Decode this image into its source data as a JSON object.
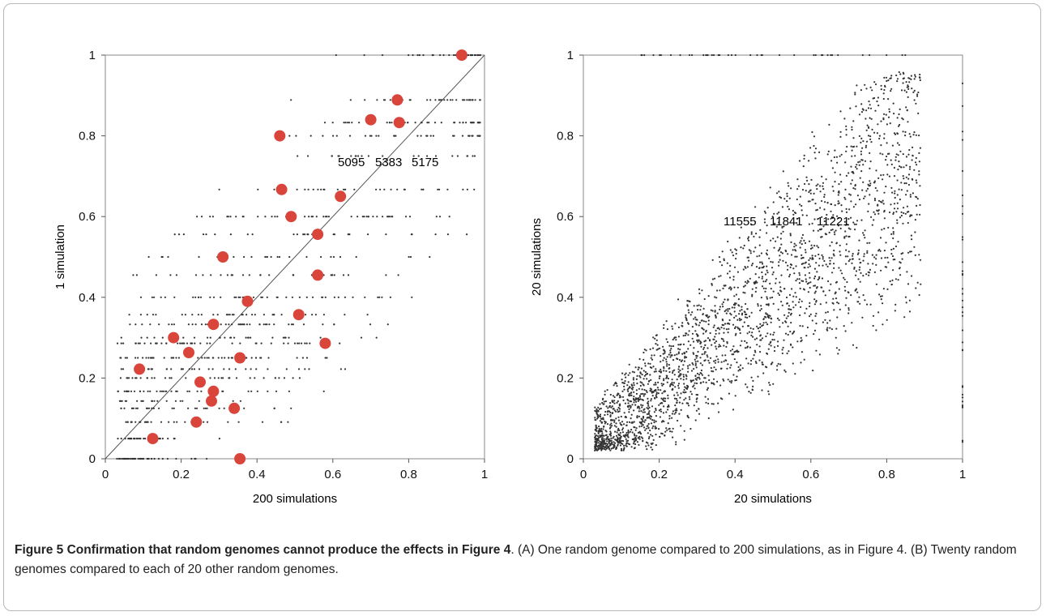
{
  "chart_data": [
    {
      "type": "scatter",
      "xlabel": "200 simulations",
      "ylabel": "1 simulation",
      "xlim": [
        0,
        1
      ],
      "ylim": [
        0,
        1
      ],
      "x_ticks": [
        "0",
        "0.2",
        "0.4",
        "0.6",
        "0.8",
        "1"
      ],
      "y_ticks": [
        "0",
        "0.2",
        "0.4",
        "0.6",
        "0.8",
        "1"
      ],
      "diagonal_line": true,
      "annotations": [
        "5095",
        "5383",
        "5175"
      ],
      "background_levels": [
        0,
        0.05,
        0.091,
        0.125,
        0.143,
        0.167,
        0.2,
        0.222,
        0.25,
        0.286,
        0.3,
        0.333,
        0.357,
        0.4,
        0.455,
        0.5,
        0.556,
        0.6,
        0.667,
        0.75,
        0.8,
        0.833,
        0.889,
        1
      ],
      "background_point_color": "#333333",
      "highlight_color": "#d9453b",
      "highlight_points": [
        {
          "x": 0.94,
          "y": 1.0
        },
        {
          "x": 0.77,
          "y": 0.889
        },
        {
          "x": 0.7,
          "y": 0.84
        },
        {
          "x": 0.775,
          "y": 0.833
        },
        {
          "x": 0.46,
          "y": 0.8
        },
        {
          "x": 0.465,
          "y": 0.667
        },
        {
          "x": 0.62,
          "y": 0.65
        },
        {
          "x": 0.49,
          "y": 0.6
        },
        {
          "x": 0.56,
          "y": 0.556
        },
        {
          "x": 0.31,
          "y": 0.5
        },
        {
          "x": 0.56,
          "y": 0.455
        },
        {
          "x": 0.375,
          "y": 0.39
        },
        {
          "x": 0.51,
          "y": 0.357
        },
        {
          "x": 0.285,
          "y": 0.333
        },
        {
          "x": 0.18,
          "y": 0.3
        },
        {
          "x": 0.58,
          "y": 0.286
        },
        {
          "x": 0.22,
          "y": 0.263
        },
        {
          "x": 0.355,
          "y": 0.25
        },
        {
          "x": 0.09,
          "y": 0.222
        },
        {
          "x": 0.25,
          "y": 0.19
        },
        {
          "x": 0.285,
          "y": 0.167
        },
        {
          "x": 0.28,
          "y": 0.143
        },
        {
          "x": 0.34,
          "y": 0.125
        },
        {
          "x": 0.24,
          "y": 0.091
        },
        {
          "x": 0.125,
          "y": 0.05
        },
        {
          "x": 0.355,
          "y": 0.0
        }
      ]
    },
    {
      "type": "scatter",
      "xlabel": "20 simulations",
      "ylabel": "20 simulations",
      "xlim": [
        0,
        1
      ],
      "ylim": [
        0,
        1
      ],
      "x_ticks": [
        "0",
        "0.2",
        "0.4",
        "0.6",
        "0.8",
        "1"
      ],
      "y_ticks": [
        "0",
        "0.2",
        "0.4",
        "0.6",
        "0.8",
        "1"
      ],
      "annotations": [
        "11555",
        "11841",
        "11221"
      ],
      "point_color": "#333333"
    }
  ],
  "caption": {
    "title": "Figure 5 Confirmation that random genomes cannot produce the effects in Figure 4",
    "text": ". (A) One random genome compared to 200 simulations, as in Figure 4. (B) Twenty random genomes compared to each of 20 other random genomes."
  }
}
